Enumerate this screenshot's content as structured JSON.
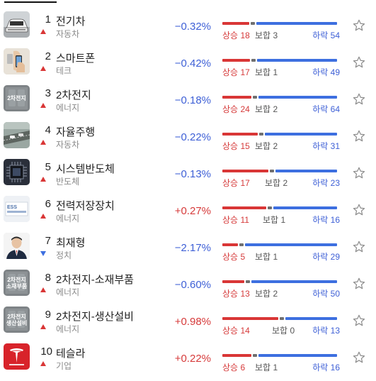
{
  "labels": {
    "up": "상승",
    "flat": "보합",
    "down": "하락"
  },
  "colors": {
    "up": "#d93636",
    "down": "#3d6fe0",
    "flat": "#6f6f6f"
  },
  "items": [
    {
      "rank": "1",
      "name": "전기차",
      "category": "자동차",
      "direction": "up",
      "change": "−0.32%",
      "change_sign": "neg",
      "up": 18,
      "flat": 3,
      "down": 54,
      "thumb_icon": "car-icon"
    },
    {
      "rank": "2",
      "name": "스마트폰",
      "category": "테크",
      "direction": "up",
      "change": "−0.42%",
      "change_sign": "neg",
      "up": 17,
      "flat": 1,
      "down": 49,
      "thumb_icon": "smartphone-icon"
    },
    {
      "rank": "3",
      "name": "2차전지",
      "category": "에너지",
      "direction": "up",
      "change": "−0.18%",
      "change_sign": "neg",
      "up": 24,
      "flat": 2,
      "down": 64,
      "thumb_icon": "battery-icon",
      "thumb_text": "2차전지"
    },
    {
      "rank": "4",
      "name": "자율주행",
      "category": "자동차",
      "direction": "up",
      "change": "−0.22%",
      "change_sign": "neg",
      "up": 15,
      "flat": 2,
      "down": 31,
      "thumb_icon": "road-icon"
    },
    {
      "rank": "5",
      "name": "시스템반도체",
      "category": "반도체",
      "direction": "up",
      "change": "−0.13%",
      "change_sign": "neg",
      "up": 17,
      "flat": 2,
      "down": 23,
      "thumb_icon": "chip-icon"
    },
    {
      "rank": "6",
      "name": "전력저장장치",
      "category": "에너지",
      "direction": "up",
      "change": "+0.27%",
      "change_sign": "pos",
      "up": 11,
      "flat": 1,
      "down": 16,
      "thumb_icon": "ess-icon"
    },
    {
      "rank": "7",
      "name": "최재형",
      "category": "정치",
      "direction": "down",
      "change": "−2.17%",
      "change_sign": "neg",
      "up": 5,
      "flat": 1,
      "down": 29,
      "thumb_icon": "person-icon"
    },
    {
      "rank": "8",
      "name": "2차전지-소재부품",
      "category": "에너지",
      "direction": "up",
      "change": "−0.60%",
      "change_sign": "neg",
      "up": 13,
      "flat": 2,
      "down": 50,
      "thumb_icon": "battery-icon",
      "thumb_text": "2차전지\n소재부품"
    },
    {
      "rank": "9",
      "name": "2차전지-생산설비",
      "category": "에너지",
      "direction": "up",
      "change": "+0.98%",
      "change_sign": "pos",
      "up": 14,
      "flat": 0,
      "down": 13,
      "thumb_icon": "battery-icon",
      "thumb_text": "2차전지\n생산설비"
    },
    {
      "rank": "10",
      "name": "테슬라",
      "category": "기업",
      "direction": "up",
      "change": "+0.22%",
      "change_sign": "pos",
      "up": 6,
      "flat": 1,
      "down": 16,
      "thumb_icon": "tesla-logo-icon"
    }
  ]
}
